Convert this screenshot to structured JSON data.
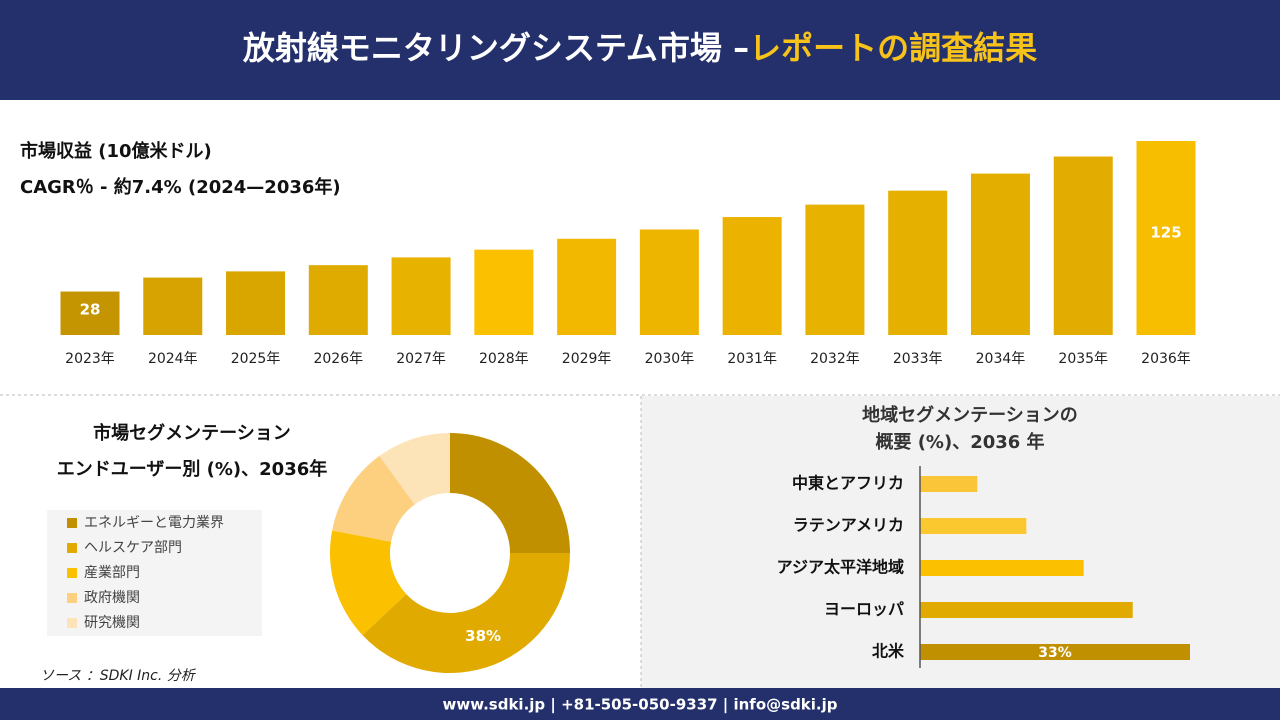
{
  "header": {
    "title": "放射線モニタリングシステム市場 –",
    "title_highlight": "レポートの調査結果"
  },
  "chart_data": [
    {
      "type": "bar",
      "title": "市場収益 (10億米ドル)",
      "subtitle": "CAGR％ - 約7.4% (2024—2036年)",
      "categories": [
        "2023年",
        "2024年",
        "2025年",
        "2026年",
        "2027年",
        "2028年",
        "2029年",
        "2030年",
        "2031年",
        "2032年",
        "2033年",
        "2034年",
        "2035年",
        "2036年"
      ],
      "values": [
        28,
        37,
        41,
        45,
        50,
        55,
        62,
        68,
        76,
        84,
        93,
        104,
        115,
        125
      ],
      "colors": [
        "#c49500",
        "#d6a300",
        "#d9a600",
        "#e0ab00",
        "#e8b200",
        "#fbc000",
        "#f2b800",
        "#eeb500",
        "#ebb300",
        "#e8b200",
        "#e6b000",
        "#e4ae00",
        "#e2ad00",
        "#f7be00"
      ],
      "ylim": [
        0,
        125
      ]
    },
    {
      "type": "pie",
      "title": "市場セグメンテーション",
      "subtitle": "エンドユーザー別 (%)、2036年",
      "categories": [
        "エネルギーと電力業界",
        "ヘルスケア部門",
        "産業部門",
        "政府機関",
        "研究機関"
      ],
      "values": [
        25,
        38,
        15,
        12,
        10
      ],
      "value_labels": [
        null,
        "38%",
        null,
        null,
        null
      ],
      "colors": [
        "#c09000",
        "#e0aa00",
        "#fbc000",
        "#fdd080",
        "#fde3b8"
      ]
    },
    {
      "type": "barh",
      "title": "地域セグメンテーションの",
      "subtitle": "概要 (%)、2036 年",
      "categories": [
        "中東とアフリカ",
        "ラテンアメリカ",
        "アジア太平洋地域",
        "ヨーロッパ",
        "北米"
      ],
      "values": [
        7,
        13,
        20,
        26,
        33
      ],
      "value_labels": [
        null,
        null,
        null,
        null,
        "33%"
      ],
      "colors": [
        "#fbc53a",
        "#fcc830",
        "#fbc000",
        "#e0aa00",
        "#c09000"
      ],
      "xlim": [
        0,
        33
      ]
    }
  ],
  "source": "ソース ：SDKI Inc. 分析",
  "footer": "www.sdki.jp | +81-505-050-9337 | info@sdki.jp"
}
